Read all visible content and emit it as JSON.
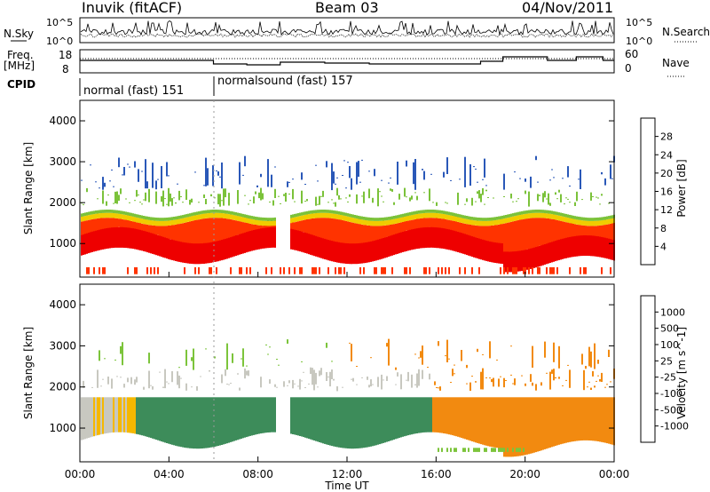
{
  "header": {
    "station": "Inuvik (fitACF)",
    "beam": "Beam 03",
    "date": "04/Nov/2011"
  },
  "noise_panel": {
    "left_label": "N.Sky",
    "right_label": "N.Search",
    "left_ticks": [
      "10^5",
      "10^0"
    ],
    "right_ticks": [
      "10^5",
      "10^0"
    ]
  },
  "freq_panel": {
    "left_label_line1": "Freq.",
    "left_label_line2": "[MHz]",
    "left_ticks": [
      "18",
      "8"
    ],
    "right_label": "Nave",
    "right_ticks": [
      "60",
      "0"
    ]
  },
  "cpid": {
    "label": "CPID",
    "segments": [
      {
        "name": "normal (fast) 151",
        "start_hour": 0,
        "end_hour": 6
      },
      {
        "name": "normalsound (fast) 157",
        "start_hour": 6,
        "end_hour": 24
      }
    ]
  },
  "chart_data": [
    {
      "type": "heatmap",
      "title": "",
      "xlabel": "Time UT",
      "ylabel": "Slant Range [km]",
      "xlim_hours": [
        0,
        24
      ],
      "x_ticks": [
        "00:00",
        "04:00",
        "08:00",
        "12:00",
        "16:00",
        "20:00",
        "00:00"
      ],
      "ylim": [
        180,
        4500
      ],
      "y_ticks": [
        1000,
        2000,
        3000,
        4000
      ],
      "colorbar": {
        "label": "Power [dB]",
        "ticks": [
          "28",
          "24",
          "20",
          "16",
          "12",
          "8",
          "4"
        ],
        "colors": [
          "#0022ee",
          "#2a58b8",
          "#3e8a66",
          "#7bc23a",
          "#f0cc00",
          "#f08c00",
          "#ff3300",
          "#ee0000"
        ]
      }
    },
    {
      "type": "heatmap",
      "title": "",
      "xlabel": "Time UT",
      "ylabel": "Slant Range [km]",
      "xlim_hours": [
        0,
        24
      ],
      "x_ticks": [
        "00:00",
        "04:00",
        "08:00",
        "12:00",
        "16:00",
        "20:00",
        "00:00"
      ],
      "ylim": [
        180,
        4500
      ],
      "y_ticks": [
        1000,
        2000,
        3000,
        4000
      ],
      "colorbar": {
        "label": "Velocity [m s^-1]",
        "ticks": [
          "1000",
          "500",
          "100",
          "25",
          "-25",
          "-100",
          "-500",
          "-1000"
        ],
        "colors": [
          "#1a3fc4",
          "#2f6da0",
          "#3d8c5a",
          "#7cc43b",
          "#c8c8c0",
          "#f5b800",
          "#f28a10",
          "#f05a00",
          "#ee0000"
        ]
      }
    }
  ]
}
